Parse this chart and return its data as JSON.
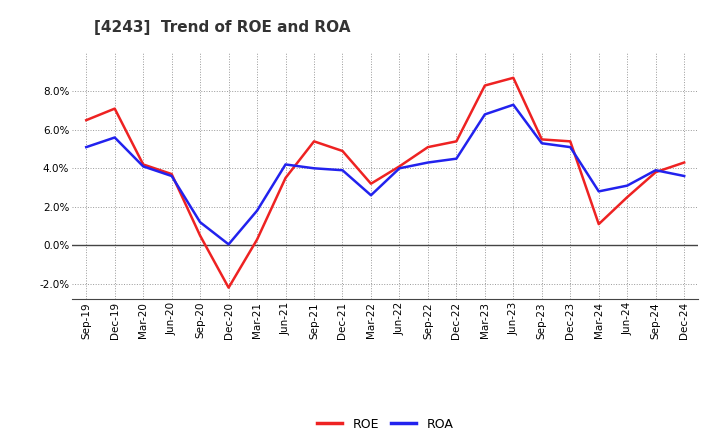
{
  "title": "[4243]  Trend of ROE and ROA",
  "x_labels": [
    "Sep-19",
    "Dec-19",
    "Mar-20",
    "Jun-20",
    "Sep-20",
    "Dec-20",
    "Mar-21",
    "Jun-21",
    "Sep-21",
    "Dec-21",
    "Mar-22",
    "Jun-22",
    "Sep-22",
    "Dec-22",
    "Mar-23",
    "Jun-23",
    "Sep-23",
    "Dec-23",
    "Mar-24",
    "Jun-24",
    "Sep-24",
    "Dec-24"
  ],
  "roe": [
    6.5,
    7.1,
    4.2,
    3.7,
    0.5,
    -2.2,
    0.3,
    3.5,
    5.4,
    4.9,
    3.2,
    4.1,
    5.1,
    5.4,
    8.3,
    8.7,
    5.5,
    5.4,
    1.1,
    2.5,
    3.8,
    4.3
  ],
  "roa": [
    5.1,
    5.6,
    4.1,
    3.6,
    1.2,
    0.05,
    1.8,
    4.2,
    4.0,
    3.9,
    2.6,
    4.0,
    4.3,
    4.5,
    6.8,
    7.3,
    5.3,
    5.1,
    2.8,
    3.1,
    3.9,
    3.6
  ],
  "roe_color": "#ee2222",
  "roa_color": "#2222ee",
  "ylim": [
    -2.8,
    10.0
  ],
  "yticks": [
    -2.0,
    0.0,
    2.0,
    4.0,
    6.0,
    8.0
  ],
  "background_color": "#ffffff",
  "grid_color": "#999999",
  "title_fontsize": 11,
  "legend_fontsize": 9,
  "tick_fontsize": 7.5,
  "linewidth": 1.8
}
